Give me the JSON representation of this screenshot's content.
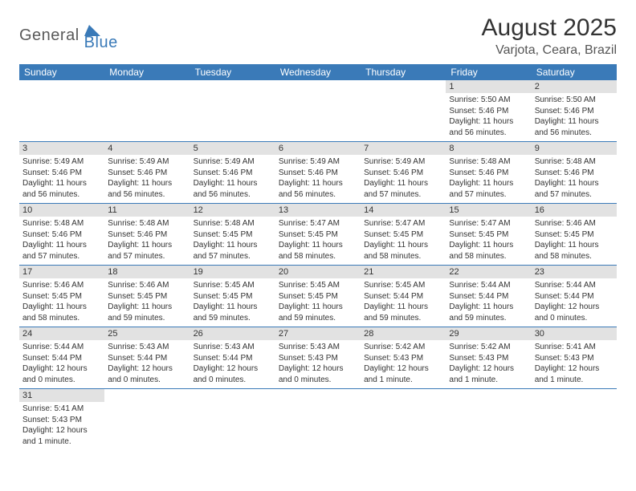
{
  "logo": {
    "text1": "General",
    "text2": "Blue"
  },
  "title": "August 2025",
  "location": "Varjota, Ceara, Brazil",
  "header_bg": "#3a7ab8",
  "header_fg": "#ffffff",
  "daynum_bg": "#e2e2e2",
  "cell_border": "#3a7ab8",
  "days": [
    "Sunday",
    "Monday",
    "Tuesday",
    "Wednesday",
    "Thursday",
    "Friday",
    "Saturday"
  ],
  "weeks": [
    [
      null,
      null,
      null,
      null,
      null,
      {
        "n": "1",
        "sr": "5:50 AM",
        "ss": "5:46 PM",
        "dl": "11 hours and 56 minutes."
      },
      {
        "n": "2",
        "sr": "5:50 AM",
        "ss": "5:46 PM",
        "dl": "11 hours and 56 minutes."
      }
    ],
    [
      {
        "n": "3",
        "sr": "5:49 AM",
        "ss": "5:46 PM",
        "dl": "11 hours and 56 minutes."
      },
      {
        "n": "4",
        "sr": "5:49 AM",
        "ss": "5:46 PM",
        "dl": "11 hours and 56 minutes."
      },
      {
        "n": "5",
        "sr": "5:49 AM",
        "ss": "5:46 PM",
        "dl": "11 hours and 56 minutes."
      },
      {
        "n": "6",
        "sr": "5:49 AM",
        "ss": "5:46 PM",
        "dl": "11 hours and 56 minutes."
      },
      {
        "n": "7",
        "sr": "5:49 AM",
        "ss": "5:46 PM",
        "dl": "11 hours and 57 minutes."
      },
      {
        "n": "8",
        "sr": "5:48 AM",
        "ss": "5:46 PM",
        "dl": "11 hours and 57 minutes."
      },
      {
        "n": "9",
        "sr": "5:48 AM",
        "ss": "5:46 PM",
        "dl": "11 hours and 57 minutes."
      }
    ],
    [
      {
        "n": "10",
        "sr": "5:48 AM",
        "ss": "5:46 PM",
        "dl": "11 hours and 57 minutes."
      },
      {
        "n": "11",
        "sr": "5:48 AM",
        "ss": "5:46 PM",
        "dl": "11 hours and 57 minutes."
      },
      {
        "n": "12",
        "sr": "5:48 AM",
        "ss": "5:45 PM",
        "dl": "11 hours and 57 minutes."
      },
      {
        "n": "13",
        "sr": "5:47 AM",
        "ss": "5:45 PM",
        "dl": "11 hours and 58 minutes."
      },
      {
        "n": "14",
        "sr": "5:47 AM",
        "ss": "5:45 PM",
        "dl": "11 hours and 58 minutes."
      },
      {
        "n": "15",
        "sr": "5:47 AM",
        "ss": "5:45 PM",
        "dl": "11 hours and 58 minutes."
      },
      {
        "n": "16",
        "sr": "5:46 AM",
        "ss": "5:45 PM",
        "dl": "11 hours and 58 minutes."
      }
    ],
    [
      {
        "n": "17",
        "sr": "5:46 AM",
        "ss": "5:45 PM",
        "dl": "11 hours and 58 minutes."
      },
      {
        "n": "18",
        "sr": "5:46 AM",
        "ss": "5:45 PM",
        "dl": "11 hours and 59 minutes."
      },
      {
        "n": "19",
        "sr": "5:45 AM",
        "ss": "5:45 PM",
        "dl": "11 hours and 59 minutes."
      },
      {
        "n": "20",
        "sr": "5:45 AM",
        "ss": "5:45 PM",
        "dl": "11 hours and 59 minutes."
      },
      {
        "n": "21",
        "sr": "5:45 AM",
        "ss": "5:44 PM",
        "dl": "11 hours and 59 minutes."
      },
      {
        "n": "22",
        "sr": "5:44 AM",
        "ss": "5:44 PM",
        "dl": "11 hours and 59 minutes."
      },
      {
        "n": "23",
        "sr": "5:44 AM",
        "ss": "5:44 PM",
        "dl": "12 hours and 0 minutes."
      }
    ],
    [
      {
        "n": "24",
        "sr": "5:44 AM",
        "ss": "5:44 PM",
        "dl": "12 hours and 0 minutes."
      },
      {
        "n": "25",
        "sr": "5:43 AM",
        "ss": "5:44 PM",
        "dl": "12 hours and 0 minutes."
      },
      {
        "n": "26",
        "sr": "5:43 AM",
        "ss": "5:44 PM",
        "dl": "12 hours and 0 minutes."
      },
      {
        "n": "27",
        "sr": "5:43 AM",
        "ss": "5:43 PM",
        "dl": "12 hours and 0 minutes."
      },
      {
        "n": "28",
        "sr": "5:42 AM",
        "ss": "5:43 PM",
        "dl": "12 hours and 1 minute."
      },
      {
        "n": "29",
        "sr": "5:42 AM",
        "ss": "5:43 PM",
        "dl": "12 hours and 1 minute."
      },
      {
        "n": "30",
        "sr": "5:41 AM",
        "ss": "5:43 PM",
        "dl": "12 hours and 1 minute."
      }
    ],
    [
      {
        "n": "31",
        "sr": "5:41 AM",
        "ss": "5:43 PM",
        "dl": "12 hours and 1 minute."
      },
      null,
      null,
      null,
      null,
      null,
      null
    ]
  ],
  "labels": {
    "sunrise": "Sunrise: ",
    "sunset": "Sunset: ",
    "daylight": "Daylight: "
  }
}
